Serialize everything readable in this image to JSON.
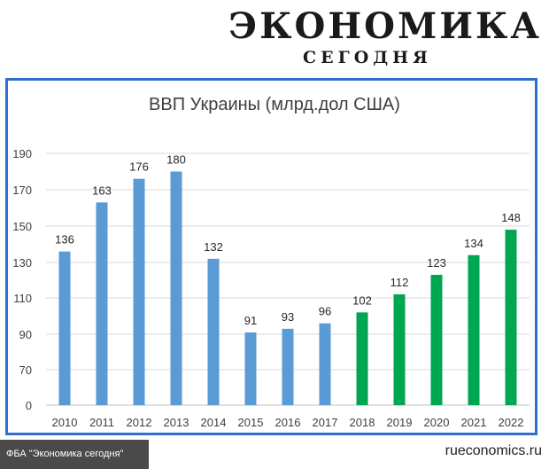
{
  "header": {
    "brand_main": "ЭКОНОМИКА",
    "brand_sub": "СЕГОДНЯ"
  },
  "footer": {
    "left": "ФБА \"Экономика сегодня\"",
    "right": "rueconomics.ru"
  },
  "chart_data": {
    "type": "bar",
    "title": "ВВП Украины (млрд.дол США)",
    "xlabel": "",
    "ylabel": "",
    "categories": [
      "2010",
      "2011",
      "2012",
      "2013",
      "2014",
      "2015",
      "2016",
      "2017",
      "2018",
      "2019",
      "2020",
      "2021",
      "2022"
    ],
    "values": [
      136,
      163,
      176,
      180,
      132,
      91,
      93,
      96,
      102,
      112,
      123,
      134,
      148
    ],
    "value_labels": [
      "136",
      "163",
      "176",
      "180",
      "132",
      "91",
      "93",
      "96",
      "102",
      "112",
      "123",
      "134",
      "148"
    ],
    "y_ticks": [
      "0",
      "70",
      "90",
      "110",
      "130",
      "150",
      "170",
      "190"
    ],
    "y_tick_values": [
      0,
      70,
      90,
      110,
      130,
      150,
      170,
      190
    ],
    "ylim": [
      0,
      190
    ],
    "grid": true,
    "colors": {
      "actual": "#5b9bd5",
      "forecast": "#00a651",
      "frame": "#2f6fd0"
    },
    "forecast_from_index": 8
  }
}
